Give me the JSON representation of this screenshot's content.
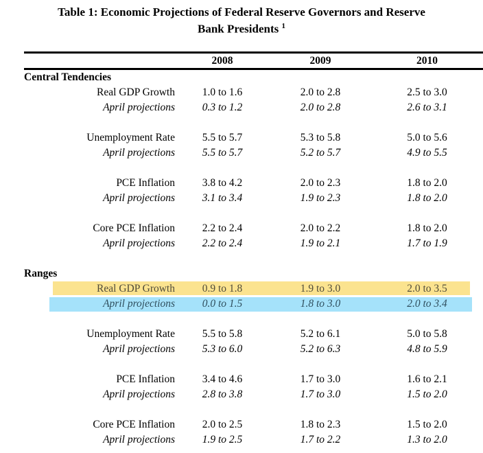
{
  "title": {
    "line1": "Table 1: Economic Projections of Federal Reserve Governors and Reserve",
    "line2": "Bank Presidents",
    "footnote_marker": "1"
  },
  "columns": [
    "2008",
    "2009",
    "2010"
  ],
  "sections": [
    {
      "name": "Central Tendencies",
      "rows": [
        {
          "label": "Real GDP Growth",
          "italic": false,
          "highlight": "",
          "values": [
            "1.0 to 1.6",
            "2.0 to 2.8",
            "2.5 to 3.0"
          ]
        },
        {
          "label": "April projections",
          "italic": true,
          "highlight": "",
          "values": [
            "0.3 to 1.2",
            "2.0 to 2.8",
            "2.6 to 3.1"
          ]
        },
        {
          "label": "Unemployment Rate",
          "italic": false,
          "highlight": "",
          "values": [
            "5.5 to 5.7",
            "5.3 to 5.8",
            "5.0 to 5.6"
          ]
        },
        {
          "label": "April projections",
          "italic": true,
          "highlight": "",
          "values": [
            "5.5 to 5.7",
            "5.2 to 5.7",
            "4.9 to 5.5"
          ]
        },
        {
          "label": "PCE Inflation",
          "italic": false,
          "highlight": "",
          "values": [
            "3.8 to 4.2",
            "2.0 to 2.3",
            "1.8 to 2.0"
          ]
        },
        {
          "label": "April projections",
          "italic": true,
          "highlight": "",
          "values": [
            "3.1 to 3.4",
            "1.9 to 2.3",
            "1.8 to 2.0"
          ]
        },
        {
          "label": "Core PCE Inflation",
          "italic": false,
          "highlight": "",
          "values": [
            "2.2 to 2.4",
            "2.0 to 2.2",
            "1.8 to 2.0"
          ]
        },
        {
          "label": "April projections",
          "italic": true,
          "highlight": "",
          "values": [
            "2.2 to 2.4",
            "1.9 to 2.1",
            "1.7 to 1.9"
          ]
        }
      ]
    },
    {
      "name": "Ranges",
      "rows": [
        {
          "label": "Real GDP Growth",
          "italic": false,
          "highlight": "yellow",
          "values": [
            "0.9 to 1.8",
            "1.9 to 3.0",
            "2.0 to 3.5"
          ]
        },
        {
          "label": "April projections",
          "italic": true,
          "highlight": "blue",
          "values": [
            "0.0 to 1.5",
            "1.8 to 3.0",
            "2.0 to 3.4"
          ]
        },
        {
          "label": "Unemployment Rate",
          "italic": false,
          "highlight": "",
          "values": [
            "5.5 to 5.8",
            "5.2 to 6.1",
            "5.0 to 5.8"
          ]
        },
        {
          "label": "April projections",
          "italic": true,
          "highlight": "",
          "values": [
            "5.3 to 6.0",
            "5.2 to 6.3",
            "4.8 to 5.9"
          ]
        },
        {
          "label": "PCE Inflation",
          "italic": false,
          "highlight": "",
          "values": [
            "3.4 to 4.6",
            "1.7 to 3.0",
            "1.6 to 2.1"
          ]
        },
        {
          "label": "April projections",
          "italic": true,
          "highlight": "",
          "values": [
            "2.8 to 3.8",
            "1.7 to 3.0",
            "1.5 to 2.0"
          ]
        },
        {
          "label": "Core PCE Inflation",
          "italic": false,
          "highlight": "",
          "values": [
            "2.0 to 2.5",
            "1.8 to 2.3",
            "1.5 to 2.0"
          ]
        },
        {
          "label": "April projections",
          "italic": true,
          "highlight": "",
          "values": [
            "1.9 to 2.5",
            "1.7 to 2.2",
            "1.3 to 2.0"
          ]
        }
      ]
    }
  ],
  "colors": {
    "highlight_yellow": "#fbe38f",
    "highlight_blue": "#a5e2fa"
  }
}
